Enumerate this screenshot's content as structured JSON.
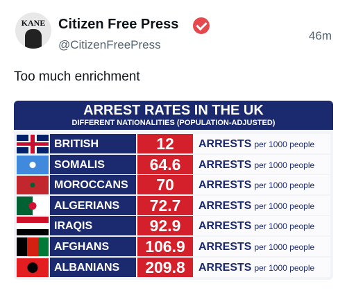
{
  "post": {
    "author": "Citizen Free Press",
    "handle": "@CitizenFreePress",
    "time": "46m",
    "avatar_text": "KANE",
    "text": "Too much enrichment"
  },
  "table": {
    "title": "ARREST RATES IN THE UK",
    "subtitle": "DIFFERENT NATIONALITIES (POPULATION-ADJUSTED)",
    "rows": [
      {
        "nationality": "BRITISH",
        "rate": 12,
        "unit": "ARRESTS",
        "per": "per 1000 people"
      },
      {
        "nationality": "SOMALIS",
        "rate": 64.6,
        "unit": "ARRESTS",
        "per": "per 1000 people"
      },
      {
        "nationality": "MOROCCANS",
        "rate": 70,
        "unit": "ARRESTS",
        "per": "per 1000 people"
      },
      {
        "nationality": "ALGERIANS",
        "rate": 72.7,
        "unit": "ARRESTS",
        "per": "per 1000 people"
      },
      {
        "nationality": "IRAQIS",
        "rate": 92.9,
        "unit": "ARRESTS",
        "per": "per 1000 people"
      },
      {
        "nationality": "AFGHANS",
        "rate": 106.9,
        "unit": "ARRESTS",
        "per": "per 1000 people"
      },
      {
        "nationality": "ALBANIANS",
        "rate": 209.8,
        "unit": "ARRESTS",
        "per": "per 1000 people"
      }
    ]
  }
}
